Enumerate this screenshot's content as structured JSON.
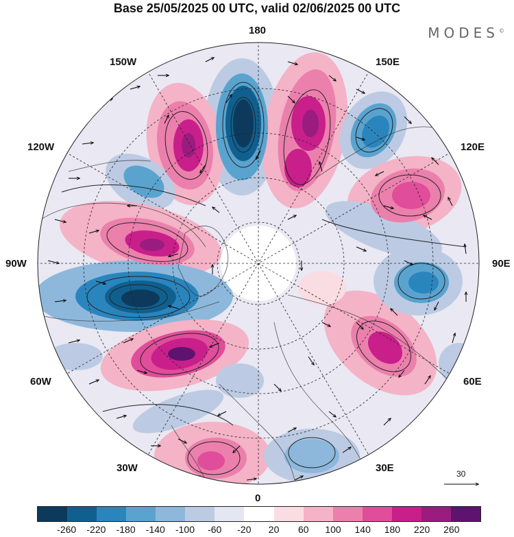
{
  "title": "Base 25/05/2025 00 UTC, valid 02/06/2025 00 UTC",
  "brand": "MODES",
  "brand_mark": "©",
  "longitude_labels": {
    "top": "180",
    "bottom": "0",
    "left": "90W",
    "right": "90E",
    "upper_left_outer": "150W",
    "upper_left_inner": "120W",
    "upper_right_outer": "150E",
    "upper_right_inner": "120E",
    "lower_left_inner": "60W",
    "lower_left_outer": "30W",
    "lower_right_inner": "60E",
    "lower_right_outer": "30E"
  },
  "vector_scale_label": "30",
  "colorbar": {
    "colors": [
      "#0d3a5c",
      "#10608f",
      "#2a85bd",
      "#5aa3cf",
      "#8db8dc",
      "#bccbe3",
      "#e4e6f2",
      "#ffffff",
      "#fadde3",
      "#f4b3c6",
      "#eb80ac",
      "#e04d9a",
      "#c81f8a",
      "#9a1c7e",
      "#5e1371"
    ],
    "tick_labels": [
      "-260",
      "-220",
      "-180",
      "-140",
      "-100",
      "-60",
      "-20",
      "20",
      "60",
      "100",
      "140",
      "180",
      "220",
      "260"
    ]
  }
}
